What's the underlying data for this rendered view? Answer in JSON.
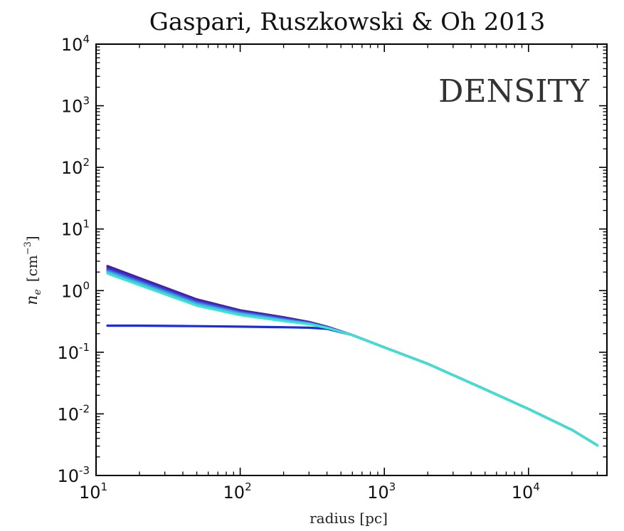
{
  "chart_data": {
    "type": "line",
    "title": "Gaspari, Ruszkowski & Oh 2013",
    "annotation": "DENSITY",
    "xlabel": "radius  [pc]",
    "ylabel_symbol": "n",
    "ylabel_sub": "e",
    "ylabel_unit": "[cm",
    "ylabel_unit_exp": "−3",
    "ylabel_unit_close": "]",
    "xscale": "log",
    "yscale": "log",
    "xlim": [
      10,
      35000
    ],
    "ylim": [
      0.001,
      10000
    ],
    "x_ticks": [
      {
        "value": 10,
        "base": "10",
        "exp": "1"
      },
      {
        "value": 100,
        "base": "10",
        "exp": "2"
      },
      {
        "value": 1000,
        "base": "10",
        "exp": "3"
      },
      {
        "value": 10000,
        "base": "10",
        "exp": "4"
      }
    ],
    "y_ticks": [
      {
        "value": 0.001,
        "base": "10",
        "exp": "-3"
      },
      {
        "value": 0.01,
        "base": "10",
        "exp": "-2"
      },
      {
        "value": 0.1,
        "base": "10",
        "exp": "-1"
      },
      {
        "value": 1,
        "base": "10",
        "exp": "0"
      },
      {
        "value": 10,
        "base": "10",
        "exp": "1"
      },
      {
        "value": 100,
        "base": "10",
        "exp": "2"
      },
      {
        "value": 1000,
        "base": "10",
        "exp": "3"
      },
      {
        "value": 10000,
        "base": "10",
        "exp": "4"
      }
    ],
    "grid": false,
    "legend": "none",
    "series": [
      {
        "color": "#1a2be0",
        "x": [
          12,
          20,
          50,
          100,
          200,
          300,
          400,
          600,
          1000,
          2000,
          5000,
          10000,
          20000,
          30000
        ],
        "y": [
          0.27,
          0.27,
          0.265,
          0.26,
          0.255,
          0.25,
          0.24,
          0.19,
          0.12,
          0.065,
          0.025,
          0.012,
          0.0055,
          0.0031
        ]
      },
      {
        "color": "#4a1a9e",
        "x": [
          12,
          20,
          50,
          100,
          200,
          300,
          400,
          600,
          1000,
          2000,
          5000,
          10000,
          20000,
          30000
        ],
        "y": [
          2.5,
          1.6,
          0.72,
          0.48,
          0.37,
          0.31,
          0.26,
          0.19,
          0.12,
          0.065,
          0.025,
          0.012,
          0.0055,
          0.0031
        ]
      },
      {
        "color": "#3d2bc4",
        "x": [
          12,
          20,
          50,
          100,
          200,
          300,
          400,
          600,
          1000,
          2000,
          5000,
          10000,
          20000,
          30000
        ],
        "y": [
          2.35,
          1.52,
          0.69,
          0.465,
          0.36,
          0.305,
          0.258,
          0.19,
          0.12,
          0.065,
          0.025,
          0.012,
          0.0055,
          0.0031
        ]
      },
      {
        "color": "#2f52d6",
        "x": [
          12,
          20,
          50,
          100,
          200,
          300,
          400,
          600,
          1000,
          2000,
          5000,
          10000,
          20000,
          30000
        ],
        "y": [
          2.2,
          1.44,
          0.66,
          0.45,
          0.35,
          0.3,
          0.255,
          0.19,
          0.12,
          0.065,
          0.025,
          0.012,
          0.0055,
          0.0031
        ]
      },
      {
        "color": "#3b86dc",
        "x": [
          12,
          20,
          50,
          100,
          200,
          300,
          400,
          600,
          1000,
          2000,
          5000,
          10000,
          20000,
          30000
        ],
        "y": [
          2.1,
          1.37,
          0.63,
          0.435,
          0.34,
          0.295,
          0.252,
          0.19,
          0.12,
          0.065,
          0.025,
          0.012,
          0.0055,
          0.0031
        ]
      },
      {
        "color": "#3fb8d8",
        "x": [
          12,
          20,
          50,
          100,
          200,
          300,
          400,
          600,
          1000,
          2000,
          5000,
          10000,
          20000,
          30000
        ],
        "y": [
          2.0,
          1.3,
          0.6,
          0.42,
          0.33,
          0.29,
          0.25,
          0.19,
          0.12,
          0.065,
          0.025,
          0.012,
          0.0055,
          0.0031
        ]
      },
      {
        "color": "#40e0d0",
        "x": [
          12,
          20,
          50,
          100,
          200,
          300,
          400,
          600,
          1000,
          2000,
          5000,
          10000,
          20000,
          30000
        ],
        "y": [
          1.9,
          1.23,
          0.57,
          0.4,
          0.32,
          0.285,
          0.248,
          0.19,
          0.12,
          0.065,
          0.025,
          0.012,
          0.0055,
          0.0031
        ]
      }
    ]
  }
}
